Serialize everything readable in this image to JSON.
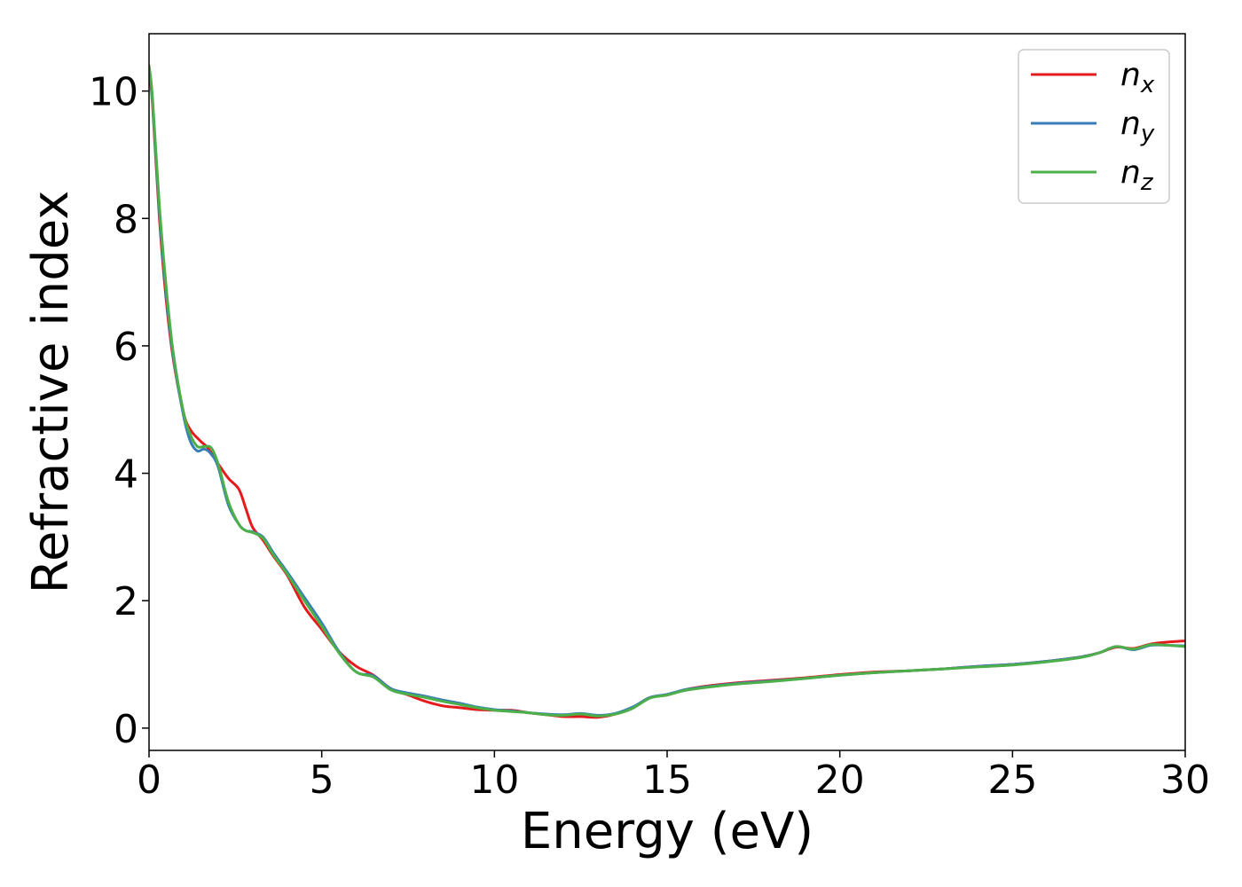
{
  "chart_data": {
    "type": "line",
    "xlabel": "Energy (eV)",
    "ylabel": "Refractive index",
    "xlim": [
      0,
      30
    ],
    "ylim": [
      -0.35,
      10.9
    ],
    "xticks": [
      "0",
      "5",
      "10",
      "15",
      "20",
      "25",
      "30"
    ],
    "yticks": [
      "0",
      "2",
      "4",
      "6",
      "8",
      "10"
    ],
    "grid": false,
    "legend_position": "top-right",
    "series": [
      {
        "name": "n",
        "subscript": "x",
        "color": "#e41a1c",
        "x": [
          0,
          0.1,
          0.3,
          0.5,
          0.7,
          1.0,
          1.2,
          1.5,
          1.7,
          2.0,
          2.3,
          2.6,
          2.8,
          3.0,
          3.3,
          3.6,
          4.0,
          4.5,
          5.0,
          5.5,
          6.0,
          6.5,
          7.0,
          7.5,
          8.0,
          8.5,
          9.0,
          9.5,
          10.0,
          10.5,
          11.0,
          11.5,
          12.0,
          12.5,
          13.0,
          13.5,
          14.0,
          14.5,
          15.0,
          15.5,
          16.0,
          17.0,
          18.0,
          19.0,
          20.0,
          21.0,
          22.0,
          23.0,
          24.0,
          25.0,
          26.0,
          27.0,
          27.5,
          28.0,
          28.5,
          29.0,
          29.5,
          30.0
        ],
        "y": [
          10.3,
          9.8,
          8.0,
          6.7,
          5.8,
          4.95,
          4.68,
          4.5,
          4.4,
          4.15,
          3.92,
          3.75,
          3.45,
          3.15,
          2.95,
          2.7,
          2.4,
          1.9,
          1.55,
          1.2,
          0.97,
          0.83,
          0.62,
          0.52,
          0.42,
          0.35,
          0.32,
          0.29,
          0.28,
          0.28,
          0.24,
          0.21,
          0.18,
          0.18,
          0.17,
          0.22,
          0.32,
          0.48,
          0.52,
          0.6,
          0.65,
          0.71,
          0.75,
          0.79,
          0.84,
          0.88,
          0.9,
          0.93,
          0.97,
          1.0,
          1.05,
          1.12,
          1.18,
          1.27,
          1.25,
          1.32,
          1.35,
          1.37
        ]
      },
      {
        "name": "n",
        "subscript": "y",
        "color": "#377eb8",
        "x": [
          0,
          0.1,
          0.3,
          0.5,
          0.7,
          1.0,
          1.2,
          1.4,
          1.6,
          1.8,
          2.0,
          2.3,
          2.6,
          2.8,
          3.0,
          3.3,
          3.6,
          4.0,
          4.5,
          5.0,
          5.5,
          6.0,
          6.5,
          7.0,
          7.5,
          8.0,
          8.5,
          9.0,
          9.5,
          10.0,
          10.5,
          11.0,
          11.5,
          12.0,
          12.5,
          13.0,
          13.5,
          14.0,
          14.5,
          15.0,
          15.5,
          16.0,
          17.0,
          18.0,
          19.0,
          20.0,
          21.0,
          22.0,
          23.0,
          24.0,
          25.0,
          26.0,
          27.0,
          27.5,
          28.0,
          28.5,
          29.0,
          29.5,
          30.0
        ],
        "y": [
          10.35,
          9.85,
          8.1,
          6.8,
          5.85,
          4.9,
          4.5,
          4.35,
          4.38,
          4.3,
          4.1,
          3.5,
          3.2,
          3.1,
          3.08,
          3.0,
          2.75,
          2.45,
          2.05,
          1.65,
          1.2,
          0.88,
          0.82,
          0.62,
          0.55,
          0.5,
          0.44,
          0.39,
          0.33,
          0.29,
          0.27,
          0.24,
          0.22,
          0.21,
          0.23,
          0.2,
          0.23,
          0.33,
          0.48,
          0.53,
          0.6,
          0.64,
          0.7,
          0.74,
          0.78,
          0.83,
          0.87,
          0.9,
          0.93,
          0.97,
          1.0,
          1.05,
          1.12,
          1.18,
          1.28,
          1.23,
          1.3,
          1.3,
          1.29
        ]
      },
      {
        "name": "n",
        "subscript": "z",
        "color": "#4daf4a",
        "x": [
          0,
          0.1,
          0.3,
          0.5,
          0.7,
          1.0,
          1.2,
          1.4,
          1.6,
          1.8,
          2.0,
          2.3,
          2.6,
          2.8,
          3.0,
          3.3,
          3.6,
          4.0,
          4.5,
          5.0,
          5.5,
          6.0,
          6.5,
          7.0,
          7.5,
          8.0,
          8.5,
          9.0,
          9.5,
          10.0,
          10.5,
          11.0,
          11.5,
          12.0,
          12.5,
          13.0,
          13.5,
          14.0,
          14.5,
          15.0,
          15.5,
          16.0,
          17.0,
          18.0,
          19.0,
          20.0,
          21.0,
          22.0,
          23.0,
          24.0,
          25.0,
          26.0,
          27.0,
          27.5,
          28.0,
          28.5,
          29.0,
          29.5,
          30.0
        ],
        "y": [
          10.4,
          9.9,
          8.2,
          6.9,
          5.9,
          4.95,
          4.6,
          4.42,
          4.42,
          4.4,
          4.15,
          3.55,
          3.2,
          3.1,
          3.07,
          2.98,
          2.72,
          2.42,
          2.0,
          1.6,
          1.18,
          0.88,
          0.8,
          0.6,
          0.53,
          0.48,
          0.42,
          0.37,
          0.32,
          0.28,
          0.26,
          0.24,
          0.21,
          0.2,
          0.22,
          0.19,
          0.22,
          0.31,
          0.47,
          0.52,
          0.59,
          0.63,
          0.69,
          0.73,
          0.78,
          0.83,
          0.87,
          0.9,
          0.93,
          0.96,
          0.99,
          1.04,
          1.11,
          1.18,
          1.28,
          1.24,
          1.31,
          1.3,
          1.28
        ]
      }
    ]
  }
}
